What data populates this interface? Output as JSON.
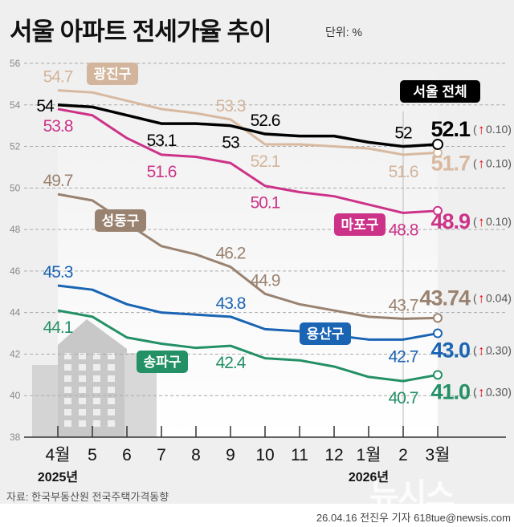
{
  "title": "서울 아파트 전세가율 추이",
  "unit": "단위: %",
  "source": "자료: 한국부동산원 전국주택가격동향",
  "credit": "26.04.16 전진우 기자 618tue@newsis.com",
  "logo": "뉴시스",
  "chart_data": {
    "type": "line",
    "categories": [
      "4월",
      "5",
      "6",
      "7",
      "8",
      "9",
      "10",
      "11",
      "12",
      "1월",
      "2",
      "3월"
    ],
    "year_labels": [
      {
        "index": 0,
        "text": "2025년"
      },
      {
        "index": 9,
        "text": "2026년"
      }
    ],
    "ylim": [
      38,
      56
    ],
    "yticks": [
      38,
      40,
      42,
      44,
      46,
      48,
      50,
      52,
      54,
      56
    ],
    "grid": true,
    "series": [
      {
        "name": "광진구",
        "color": "#d8b9a0",
        "values": [
          54.7,
          54.6,
          54.2,
          53.8,
          53.6,
          53.3,
          52.1,
          52.1,
          52.0,
          51.9,
          51.6,
          51.7
        ],
        "labels": [
          {
            "i": 0,
            "t": "54.7",
            "pos": "above"
          },
          {
            "i": 5,
            "t": "53.3",
            "pos": "above"
          },
          {
            "i": 6,
            "t": "52.1",
            "pos": "below"
          },
          {
            "i": 10,
            "t": "51.6",
            "pos": "below"
          }
        ],
        "final": "51.7",
        "change": "0.10"
      },
      {
        "name": "서울 전체",
        "color": "#000000",
        "values": [
          54,
          53.9,
          53.5,
          53.1,
          53.1,
          53,
          52.6,
          52.5,
          52.5,
          52.2,
          52,
          52.1
        ],
        "labels": [
          {
            "i": 0,
            "t": "54",
            "pos": "left"
          },
          {
            "i": 3,
            "t": "53.1",
            "pos": "below"
          },
          {
            "i": 5,
            "t": "53",
            "pos": "below"
          },
          {
            "i": 6,
            "t": "52.6",
            "pos": "above"
          },
          {
            "i": 10,
            "t": "52",
            "pos": "above"
          }
        ],
        "final": "52.1",
        "change": "0.10"
      },
      {
        "name": "마포구",
        "color": "#cc3388",
        "values": [
          53.8,
          53.5,
          52.4,
          51.6,
          51.5,
          51.2,
          50.1,
          49.8,
          49.6,
          49.2,
          48.8,
          48.9
        ],
        "labels": [
          {
            "i": 0,
            "t": "53.8",
            "pos": "below"
          },
          {
            "i": 3,
            "t": "51.6",
            "pos": "below"
          },
          {
            "i": 6,
            "t": "50.1",
            "pos": "below"
          },
          {
            "i": 10,
            "t": "48.8",
            "pos": "below"
          }
        ],
        "final": "48.9",
        "change": "0.10"
      },
      {
        "name": "성동구",
        "color": "#9a8270",
        "values": [
          49.7,
          49.4,
          48.3,
          47.2,
          46.8,
          46.2,
          44.9,
          44.4,
          44.1,
          43.8,
          43.7,
          43.74
        ],
        "labels": [
          {
            "i": 0,
            "t": "49.7",
            "pos": "above"
          },
          {
            "i": 5,
            "t": "46.2",
            "pos": "above"
          },
          {
            "i": 6,
            "t": "44.9",
            "pos": "above"
          },
          {
            "i": 10,
            "t": "43.7",
            "pos": "above"
          }
        ],
        "final": "43.74",
        "change": "0.04"
      },
      {
        "name": "용산구",
        "color": "#1a64b4",
        "values": [
          45.3,
          45.1,
          44.4,
          44.0,
          43.9,
          43.8,
          43.2,
          43.1,
          42.9,
          42.7,
          42.7,
          43.0
        ],
        "labels": [
          {
            "i": 0,
            "t": "45.3",
            "pos": "above"
          },
          {
            "i": 5,
            "t": "43.8",
            "pos": "above"
          },
          {
            "i": 10,
            "t": "42.7",
            "pos": "below"
          }
        ],
        "final": "43.0",
        "change": "0.30"
      },
      {
        "name": "송파구",
        "color": "#239065",
        "values": [
          44.1,
          43.8,
          42.8,
          42.5,
          42.3,
          42.4,
          41.8,
          41.7,
          41.4,
          40.9,
          40.7,
          41.0
        ],
        "labels": [
          {
            "i": 0,
            "t": "44.1",
            "pos": "below"
          },
          {
            "i": 5,
            "t": "42.4",
            "pos": "below"
          },
          {
            "i": 10,
            "t": "40.7",
            "pos": "below"
          }
        ],
        "final": "41.0",
        "change": "0.30"
      }
    ],
    "change_icon": "arrow-up-icon",
    "change_color": "#e60012"
  }
}
